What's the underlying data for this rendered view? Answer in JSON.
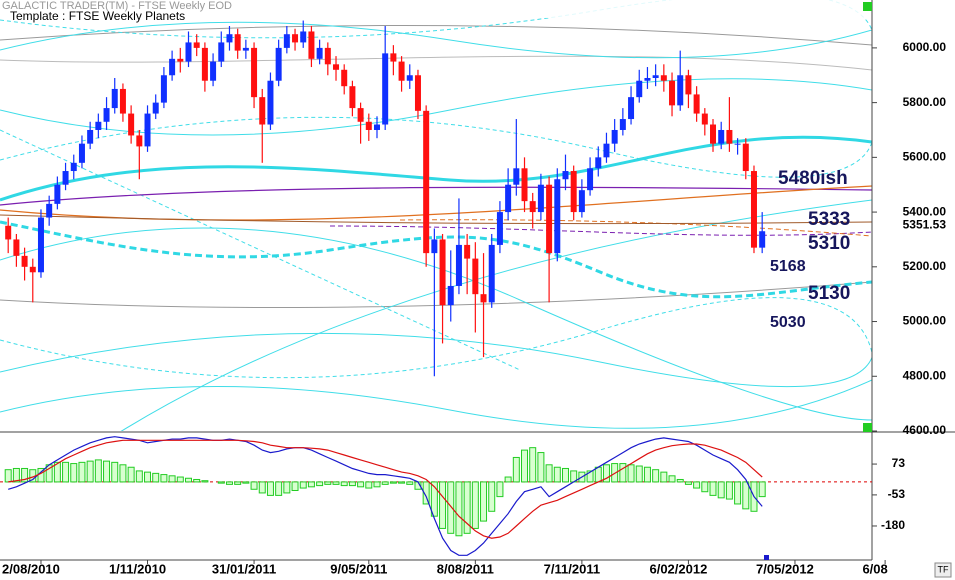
{
  "chart_data": {
    "type": "candlestick",
    "header": "GALACTIC TRADER(TM) - FTSE Weekly EOD",
    "title": "Template : FTSE Weekly Planets",
    "up_color": "#1030ff",
    "down_color": "#ff1010",
    "open": [
      5350,
      5300,
      5240,
      5200,
      5180,
      5380,
      5430,
      5500,
      5550,
      5580,
      5650,
      5700,
      5730,
      5780,
      5850,
      5760,
      5680,
      5640,
      5760,
      5800,
      5900,
      5960,
      5950,
      6020,
      6000,
      5880,
      5950,
      6020,
      6050,
      5990,
      6000,
      5820,
      5720,
      5880,
      6000,
      6050,
      6020,
      6060,
      5960,
      6000,
      5940,
      5920,
      5860,
      5780,
      5730,
      5700,
      5720,
      5980,
      5950,
      5880,
      5900,
      5770,
      5250,
      5300,
      5060,
      5130,
      5280,
      5230,
      5100,
      5070,
      5280,
      5400,
      5500,
      5560,
      5440,
      5400,
      5500,
      5250,
      5520,
      5550,
      5400,
      5480,
      5560,
      5600,
      5650,
      5700,
      5740,
      5820,
      5880,
      5890,
      5900,
      5880,
      5790,
      5900,
      5830,
      5760,
      5720,
      5650,
      5700,
      5650,
      5650,
      5550,
      5270
    ],
    "high": [
      5380,
      5320,
      5270,
      5230,
      5410,
      5460,
      5530,
      5580,
      5610,
      5680,
      5730,
      5760,
      5820,
      5890,
      5870,
      5790,
      5700,
      5790,
      5830,
      5930,
      5990,
      6000,
      6060,
      6050,
      6020,
      5980,
      6060,
      6080,
      6070,
      6030,
      6020,
      5850,
      5910,
      6030,
      6080,
      6070,
      6100,
      6080,
      6030,
      6020,
      5970,
      5940,
      5880,
      5800,
      5760,
      5750,
      6080,
      6010,
      5970,
      5940,
      5920,
      5790,
      5340,
      5320,
      5260,
      5450,
      5320,
      5290,
      5250,
      5320,
      5440,
      5560,
      5740,
      5600,
      5470,
      5540,
      5530,
      5560,
      5610,
      5570,
      5520,
      5600,
      5640,
      5690,
      5740,
      5780,
      5860,
      5920,
      5930,
      5940,
      5940,
      5910,
      5990,
      5920,
      5860,
      5780,
      5740,
      5730,
      5820,
      5670,
      5670,
      5570,
      5400
    ],
    "low": [
      5250,
      5200,
      5150,
      5070,
      5160,
      5350,
      5410,
      5480,
      5520,
      5560,
      5630,
      5670,
      5700,
      5760,
      5730,
      5650,
      5520,
      5620,
      5740,
      5780,
      5880,
      5910,
      5930,
      5970,
      5840,
      5860,
      5930,
      5990,
      5960,
      5960,
      5780,
      5580,
      5700,
      5860,
      5980,
      5990,
      6000,
      5930,
      5940,
      5900,
      5880,
      5830,
      5750,
      5650,
      5660,
      5670,
      5700,
      5900,
      5840,
      5850,
      5740,
      5200,
      4800,
      4920,
      5000,
      5100,
      5100,
      4960,
      4870,
      5050,
      5250,
      5370,
      5460,
      5400,
      5340,
      5370,
      5070,
      5220,
      5480,
      5370,
      5380,
      5460,
      5530,
      5580,
      5620,
      5680,
      5720,
      5800,
      5850,
      5860,
      5840,
      5750,
      5770,
      5780,
      5730,
      5680,
      5620,
      5630,
      5620,
      5610,
      5520,
      5250,
      5250
    ],
    "close": [
      5300,
      5240,
      5200,
      5180,
      5380,
      5430,
      5500,
      5550,
      5580,
      5650,
      5700,
      5730,
      5780,
      5850,
      5760,
      5680,
      5640,
      5760,
      5800,
      5900,
      5960,
      5950,
      6020,
      6000,
      5880,
      5950,
      6020,
      6050,
      5990,
      6000,
      5820,
      5720,
      5880,
      6000,
      6050,
      6020,
      6060,
      5960,
      6000,
      5940,
      5920,
      5860,
      5780,
      5730,
      5700,
      5720,
      5980,
      5950,
      5880,
      5900,
      5770,
      5250,
      5300,
      5060,
      5130,
      5280,
      5230,
      5100,
      5070,
      5280,
      5400,
      5500,
      5560,
      5440,
      5400,
      5500,
      5250,
      5520,
      5550,
      5400,
      5480,
      5560,
      5600,
      5650,
      5700,
      5740,
      5820,
      5880,
      5890,
      5900,
      5880,
      5790,
      5900,
      5830,
      5760,
      5720,
      5650,
      5700,
      5650,
      5650,
      5550,
      5270,
      5330
    ],
    "xlim": [
      -1,
      105.4
    ],
    "xticks": [
      {
        "value": 4,
        "label": "2/08/2010"
      },
      {
        "value": 17,
        "label": "1/11/2010"
      },
      {
        "value": 30,
        "label": "31/01/2011"
      },
      {
        "value": 44,
        "label": "9/05/2011"
      },
      {
        "value": 57,
        "label": "8/08/2011"
      },
      {
        "value": 70,
        "label": "7/11/2011"
      },
      {
        "value": 83,
        "label": "6/02/2012"
      },
      {
        "value": 96,
        "label": "7/05/2012"
      },
      {
        "value": 107,
        "label": "6/08"
      }
    ],
    "ylim": [
      4600,
      6175
    ],
    "yticks": [
      {
        "value": 4600,
        "label": "4600.00"
      },
      {
        "value": 4800,
        "label": "4800.00"
      },
      {
        "value": 5000,
        "label": "5000.00"
      },
      {
        "value": 5200,
        "label": "5200.00"
      },
      {
        "value": 5400,
        "label": "5400.00"
      },
      {
        "value": 5600,
        "label": "5600.00"
      },
      {
        "value": 5800,
        "label": "5800.00"
      },
      {
        "value": 6000,
        "label": "6000.00"
      }
    ],
    "last_price": 5351.53,
    "annotations": [
      "5480ish",
      "5333",
      "5310",
      "5168",
      "5130",
      "5030"
    ],
    "indicator": {
      "ylim": [
        -319,
        204
      ],
      "yticks": [
        73,
        -53,
        -180
      ],
      "zero_color": "#dd0000",
      "histogram": {
        "color": "#22cc22",
        "fill": "#d8ffd0",
        "values": [
          50,
          55,
          55,
          50,
          55,
          70,
          80,
          80,
          75,
          80,
          85,
          90,
          85,
          80,
          70,
          60,
          45,
          40,
          35,
          30,
          25,
          20,
          15,
          10,
          5,
          0,
          -5,
          -10,
          -10,
          -5,
          -30,
          -45,
          -55,
          -55,
          -45,
          -35,
          -25,
          -20,
          -15,
          -10,
          -10,
          -15,
          -15,
          -20,
          -25,
          -20,
          -10,
          -5,
          -5,
          -10,
          -30,
          -90,
          -140,
          -190,
          -210,
          -220,
          -210,
          -190,
          -160,
          -120,
          -60,
          20,
          100,
          130,
          140,
          120,
          70,
          60,
          55,
          45,
          40,
          45,
          60,
          70,
          75,
          75,
          70,
          65,
          60,
          50,
          40,
          25,
          10,
          -10,
          -25,
          -40,
          -55,
          -65,
          -70,
          -90,
          -110,
          -120,
          -60
        ]
      },
      "series": [
        {
          "color": "#1a1acc",
          "values": [
            -30,
            -20,
            -5,
            10,
            40,
            70,
            90,
            110,
            130,
            145,
            160,
            170,
            180,
            185,
            180,
            175,
            170,
            160,
            165,
            170,
            175,
            175,
            180,
            180,
            175,
            170,
            170,
            175,
            170,
            165,
            150,
            130,
            120,
            125,
            135,
            140,
            140,
            130,
            115,
            100,
            85,
            70,
            55,
            45,
            35,
            30,
            30,
            25,
            20,
            15,
            0,
            -60,
            -150,
            -230,
            -280,
            -300,
            -300,
            -280,
            -250,
            -210,
            -170,
            -130,
            -80,
            -40,
            -30,
            -20,
            -60,
            -40,
            -20,
            0,
            20,
            40,
            60,
            80,
            100,
            120,
            140,
            155,
            165,
            175,
            180,
            175,
            170,
            165,
            150,
            130,
            110,
            95,
            80,
            50,
            10,
            -60,
            -100
          ]
        },
        {
          "color": "#dd1111",
          "values": [
            0,
            5,
            10,
            20,
            35,
            55,
            75,
            95,
            110,
            125,
            140,
            150,
            160,
            165,
            170,
            170,
            170,
            170,
            170,
            170,
            170,
            170,
            170,
            170,
            170,
            170,
            170,
            170,
            170,
            168,
            165,
            160,
            150,
            145,
            140,
            140,
            140,
            138,
            135,
            130,
            120,
            110,
            100,
            90,
            80,
            70,
            60,
            50,
            40,
            35,
            25,
            10,
            -20,
            -60,
            -100,
            -140,
            -170,
            -200,
            -220,
            -230,
            -225,
            -210,
            -180,
            -150,
            -120,
            -95,
            -85,
            -75,
            -60,
            -45,
            -30,
            -15,
            0,
            15,
            35,
            55,
            75,
            95,
            115,
            130,
            140,
            148,
            152,
            155,
            155,
            150,
            140,
            130,
            115,
            100,
            80,
            50,
            20
          ]
        }
      ]
    }
  }
}
